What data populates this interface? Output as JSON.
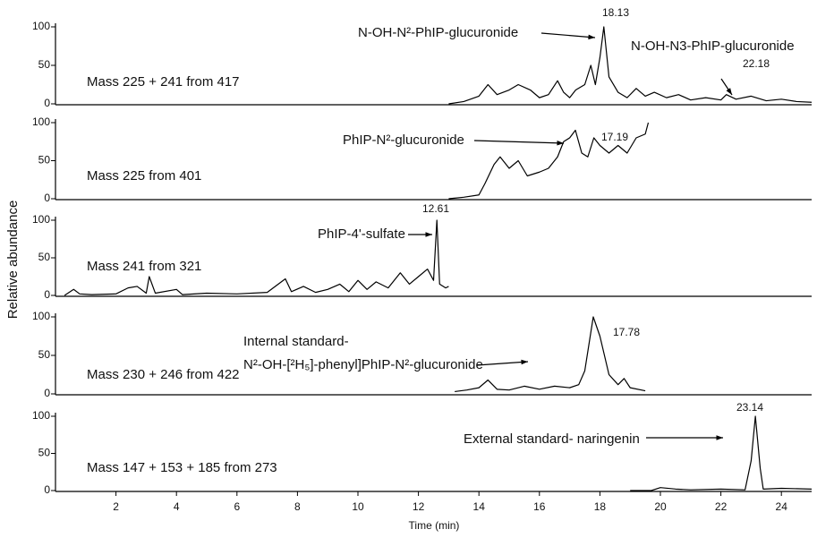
{
  "chart_data": [
    {
      "type": "line",
      "label": "Mass 225 + 241 from 417",
      "x": [
        13,
        13.5,
        14,
        14.3,
        14.6,
        15,
        15.3,
        15.7,
        16,
        16.3,
        16.6,
        16.8,
        17,
        17.2,
        17.5,
        17.7,
        17.85,
        18,
        18.13,
        18.3,
        18.6,
        18.9,
        19.2,
        19.5,
        19.8,
        20.2,
        20.6,
        21,
        21.5,
        22,
        22.18,
        22.5,
        23,
        23.5,
        24,
        24.5,
        25
      ],
      "values": [
        0,
        3,
        10,
        25,
        12,
        18,
        25,
        18,
        8,
        12,
        30,
        15,
        8,
        18,
        25,
        50,
        25,
        60,
        100,
        35,
        15,
        8,
        20,
        10,
        15,
        8,
        12,
        5,
        8,
        5,
        12,
        6,
        10,
        4,
        6,
        3,
        2
      ],
      "ylim": [
        0,
        100
      ],
      "yticks": [
        0,
        50,
        100
      ],
      "xlim": [
        0,
        25
      ],
      "annotations": [
        "N-OH-N²-PhIP-glucuronide",
        "N-OH-N3-PhIP-glucuronide"
      ],
      "peak_labels": [
        18.13,
        22.18
      ]
    },
    {
      "type": "line",
      "label": "Mass 225 from 401",
      "x": [
        13,
        13.5,
        14,
        14.2,
        14.5,
        14.7,
        15,
        15.3,
        15.6,
        16,
        16.3,
        16.6,
        16.8,
        17,
        17.19,
        17.4,
        17.6,
        17.8,
        18,
        18.3,
        18.6,
        18.9,
        19.2,
        19.5,
        19.6
      ],
      "values": [
        0,
        2,
        5,
        20,
        45,
        55,
        40,
        50,
        30,
        35,
        40,
        55,
        75,
        80,
        90,
        60,
        55,
        80,
        70,
        60,
        70,
        60,
        80,
        85,
        100
      ],
      "ylim": [
        0,
        100
      ],
      "yticks": [
        0,
        50,
        100
      ],
      "xlim": [
        0,
        25
      ],
      "annotations": [
        "PhIP-N²-glucuronide"
      ],
      "peak_labels": [
        17.19
      ]
    },
    {
      "type": "line",
      "label": "Mass 241 from 321",
      "ylabel": "Relative abundance",
      "x": [
        0.3,
        0.6,
        0.8,
        1.2,
        2,
        2.4,
        2.7,
        3,
        3.1,
        3.3,
        4,
        4.2,
        5,
        6,
        7,
        7.6,
        7.8,
        8.2,
        8.6,
        9,
        9.4,
        9.7,
        10,
        10.3,
        10.6,
        11,
        11.4,
        11.7,
        12,
        12.3,
        12.5,
        12.61,
        12.7,
        12.9,
        13
      ],
      "values": [
        0,
        8,
        2,
        1,
        2,
        10,
        12,
        3,
        25,
        3,
        8,
        1,
        3,
        2,
        4,
        22,
        5,
        12,
        4,
        8,
        15,
        5,
        20,
        8,
        18,
        10,
        30,
        15,
        25,
        35,
        20,
        100,
        15,
        10,
        12
      ],
      "ylim": [
        0,
        100
      ],
      "yticks": [
        0,
        50,
        100
      ],
      "xlim": [
        0,
        25
      ],
      "annotations": [
        "PhIP-4'-sulfate"
      ],
      "peak_labels": [
        12.61
      ]
    },
    {
      "type": "line",
      "label": "Mass 230 + 246 from 422",
      "x": [
        13.2,
        13.6,
        14,
        14.3,
        14.6,
        15,
        15.5,
        16,
        16.5,
        17,
        17.3,
        17.5,
        17.78,
        18,
        18.3,
        18.6,
        18.8,
        19,
        19.5
      ],
      "values": [
        3,
        5,
        8,
        18,
        6,
        5,
        10,
        6,
        10,
        8,
        12,
        30,
        100,
        75,
        25,
        12,
        20,
        8,
        4
      ],
      "ylim": [
        0,
        100
      ],
      "yticks": [
        0,
        50,
        100
      ],
      "xlim": [
        0,
        25
      ],
      "annotations": [
        "Internal standard-",
        "N²-OH-[²H₅]-phenyl]PhIP-N²-glucuronide"
      ],
      "peak_labels": [
        17.78
      ]
    },
    {
      "type": "line",
      "label": "Mass 147 + 153 + 185 from 273",
      "x": [
        19,
        19.7,
        20,
        20.5,
        21,
        22,
        22.8,
        23,
        23.14,
        23.3,
        23.4,
        24,
        25
      ],
      "values": [
        0,
        0,
        4,
        2,
        1,
        2,
        1,
        40,
        100,
        30,
        2,
        3,
        2
      ],
      "ylim": [
        0,
        100
      ],
      "yticks": [
        0,
        50,
        100
      ],
      "xlim": [
        0,
        25
      ],
      "xticks": [
        2,
        4,
        6,
        8,
        10,
        12,
        14,
        16,
        18,
        20,
        22,
        24
      ],
      "xlabel": "Time (min)",
      "annotations": [
        "External standard- naringenin"
      ],
      "peak_labels": [
        23.14
      ]
    }
  ]
}
